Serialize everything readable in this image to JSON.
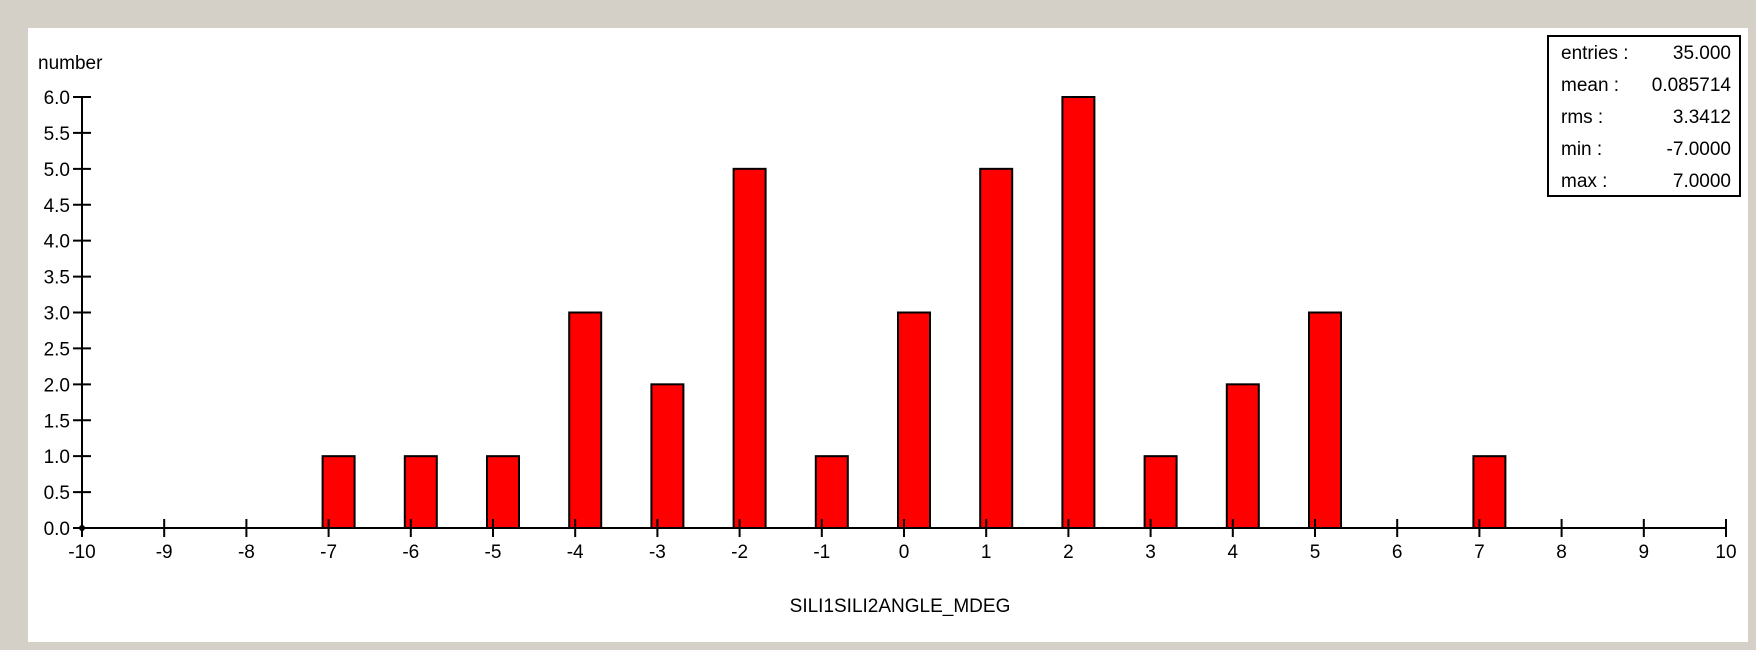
{
  "chart_data": {
    "type": "bar",
    "ylabel": "number",
    "xlabel": "SILI1SILI2ANGLE_MDEG",
    "xlim": [
      -10,
      10
    ],
    "ylim": [
      0,
      6
    ],
    "x_ticks": [
      "-10",
      "-9",
      "-8",
      "-7",
      "-6",
      "-5",
      "-4",
      "-3",
      "-2",
      "-1",
      "0",
      "1",
      "2",
      "3",
      "4",
      "5",
      "6",
      "7",
      "8",
      "9",
      "10"
    ],
    "y_ticks": [
      "0.0",
      "0.5",
      "1.0",
      "1.5",
      "2.0",
      "2.5",
      "3.0",
      "3.5",
      "4.0",
      "4.5",
      "5.0",
      "5.5",
      "6.0"
    ],
    "bar_color": "#ff0000",
    "bars": [
      {
        "x": -7,
        "value": 1
      },
      {
        "x": -6,
        "value": 1
      },
      {
        "x": -5,
        "value": 1
      },
      {
        "x": -4,
        "value": 3
      },
      {
        "x": -3,
        "value": 2
      },
      {
        "x": -2,
        "value": 5
      },
      {
        "x": -1,
        "value": 1
      },
      {
        "x": 0,
        "value": 3
      },
      {
        "x": 1,
        "value": 5
      },
      {
        "x": 2,
        "value": 6
      },
      {
        "x": 3,
        "value": 1
      },
      {
        "x": 4,
        "value": 2
      },
      {
        "x": 5,
        "value": 3
      },
      {
        "x": 7,
        "value": 1
      }
    ],
    "grid": false,
    "stats_placement": "top-right"
  },
  "stats": {
    "entries": {
      "label": "entries :",
      "value": "35.000"
    },
    "mean": {
      "label": "mean :",
      "value": "0.085714"
    },
    "rms": {
      "label": "rms :",
      "value": "3.3412"
    },
    "min": {
      "label": "min :",
      "value": "-7.0000"
    },
    "max": {
      "label": "max :",
      "value": "7.0000"
    }
  }
}
